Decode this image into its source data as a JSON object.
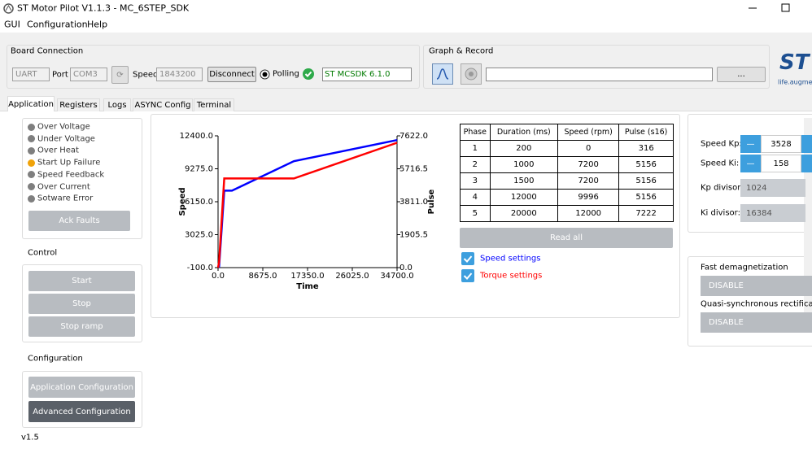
{
  "window": {
    "title": "ST Motor Pilot V1.1.3 - MC_6STEP_SDK"
  },
  "menu": [
    "GUI",
    "Configuration",
    "Help"
  ],
  "board_connection": {
    "title": "Board Connection",
    "interface": "UART",
    "port_label": "Port",
    "port": "COM3",
    "speed_label": "Speed",
    "speed": "1843200",
    "disconnect": "Disconnect",
    "polling": "Polling",
    "firmware": "ST MCSDK 6.1.0"
  },
  "graph_record": {
    "title": "Graph & Record",
    "browse": "..."
  },
  "logo": {
    "brand": "ST",
    "tagline": "life.augme"
  },
  "tabs": [
    "Application",
    "Registers",
    "Logs",
    "ASYNC Config",
    "Terminal"
  ],
  "faults": [
    {
      "label": "Over Voltage",
      "color": "#7f7f7f"
    },
    {
      "label": "Under Voltage",
      "color": "#7f7f7f"
    },
    {
      "label": "Over Heat",
      "color": "#7f7f7f"
    },
    {
      "label": "Start Up Failure",
      "color": "#f0a30a"
    },
    {
      "label": "Speed Feedback",
      "color": "#7f7f7f"
    },
    {
      "label": "Over Current",
      "color": "#7f7f7f"
    },
    {
      "label": "Sotware Error",
      "color": "#7f7f7f"
    }
  ],
  "ack_faults": "Ack Faults",
  "control": {
    "title": "Control",
    "buttons": [
      "Start",
      "Stop",
      "Stop ramp"
    ]
  },
  "configuration": {
    "title": "Configuration",
    "buttons": [
      "Application Configuration",
      "Advanced Configuration"
    ]
  },
  "version": "v1.5",
  "chart": {
    "type": "line",
    "x_label": "Time",
    "y_label": "Speed",
    "y2_label": "Pulse",
    "x": [
      0,
      200,
      1200,
      2700,
      14700,
      34700
    ],
    "series": [
      {
        "name": "Speed settings",
        "color": "#0000ff",
        "values": [
          0,
          0,
          7200,
          7200,
          9996,
          12000
        ]
      },
      {
        "name": "Torque settings",
        "color": "#ff0000",
        "axis": "y2",
        "values": [
          0,
          316,
          5156,
          5156,
          5156,
          7222
        ]
      }
    ],
    "xlim": [
      0,
      34700
    ],
    "xticks": [
      {
        "value": 0,
        "label": "0.0"
      },
      {
        "value": 8675,
        "label": "8675.0"
      },
      {
        "value": 17350,
        "label": "17350.0"
      },
      {
        "value": 26025,
        "label": "26025.0"
      },
      {
        "value": 34700,
        "label": "34700.0"
      }
    ],
    "ylim": [
      -100,
      12400
    ],
    "yticks": [
      {
        "value": -100,
        "label": "-100.0"
      },
      {
        "value": 3025,
        "label": "3025.0"
      },
      {
        "value": 6150,
        "label": "6150.0"
      },
      {
        "value": 9275,
        "label": "9275.0"
      },
      {
        "value": 12400,
        "label": "12400.0"
      }
    ],
    "y2lim": [
      0,
      7622
    ],
    "y2ticks": [
      {
        "value": 0,
        "label": "0.0"
      },
      {
        "value": 1905.5,
        "label": "1905.5"
      },
      {
        "value": 3811,
        "label": "3811.0"
      },
      {
        "value": 5716.5,
        "label": "5716.5"
      },
      {
        "value": 7622,
        "label": "7622.0"
      }
    ]
  },
  "table": {
    "header": [
      "Phase",
      "Duration (ms)",
      "Speed (rpm)",
      "Pulse (s16)"
    ],
    "rows": [
      [
        "1",
        "200",
        "0",
        "316"
      ],
      [
        "2",
        "1000",
        "7200",
        "5156"
      ],
      [
        "3",
        "1500",
        "7200",
        "5156"
      ],
      [
        "4",
        "12000",
        "9996",
        "5156"
      ],
      [
        "5",
        "20000",
        "12000",
        "7222"
      ]
    ]
  },
  "read_all": "Read all",
  "gains": [
    {
      "label": "Speed Kp:",
      "value": "3528"
    },
    {
      "label": "Speed Ki:",
      "value": "158"
    }
  ],
  "divisors": [
    {
      "label": "Kp divisor:",
      "value": "1024"
    },
    {
      "label": "Ki divisor:",
      "value": "16384"
    }
  ],
  "options": [
    {
      "label": "Fast demagnetization",
      "value": "DISABLE"
    },
    {
      "label": "Quasi-synchronous rectificatio",
      "value": "DISABLE"
    }
  ]
}
